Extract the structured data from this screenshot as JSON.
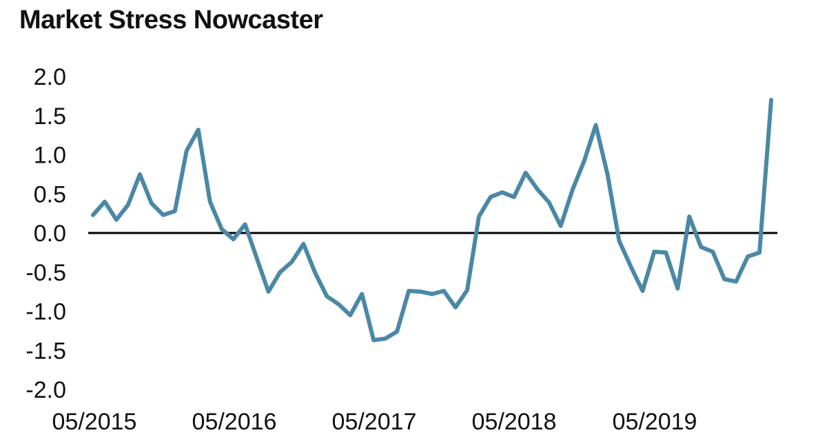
{
  "chart_data": {
    "type": "line",
    "title": "Market Stress Nowcaster",
    "xlabel": "",
    "ylabel": "",
    "ylim": [
      -2.0,
      2.0
    ],
    "yticks": [
      "2.0",
      "1.5",
      "1.0",
      "0.5",
      "0.0",
      "-0.5",
      "-1.0",
      "-1.5",
      "-2.0"
    ],
    "xticks": [
      "05/2015",
      "05/2016",
      "05/2017",
      "05/2018",
      "05/2019"
    ],
    "x_start": "05/2015",
    "x_end": "02/2020",
    "grid": false,
    "zero_line": true,
    "line_color": "#4a88a6",
    "series": [
      {
        "values": [
          0.23,
          0.4,
          0.17,
          0.36,
          0.75,
          0.38,
          0.23,
          0.28,
          1.05,
          1.32,
          0.4,
          0.05,
          -0.08,
          0.11,
          -0.32,
          -0.75,
          -0.5,
          -0.37,
          -0.14,
          -0.51,
          -0.81,
          -0.91,
          -1.05,
          -0.78,
          -1.37,
          -1.35,
          -1.26,
          -0.74,
          -0.75,
          -0.78,
          -0.74,
          -0.95,
          -0.73,
          0.21,
          0.46,
          0.52,
          0.46,
          0.77,
          0.56,
          0.39,
          0.09,
          0.55,
          0.92,
          1.38,
          0.75,
          -0.1,
          -0.43,
          -0.74,
          -0.24,
          -0.25,
          -0.71,
          0.21,
          -0.18,
          -0.24,
          -0.59,
          -0.62,
          -0.3,
          -0.25,
          1.7
        ]
      }
    ]
  }
}
